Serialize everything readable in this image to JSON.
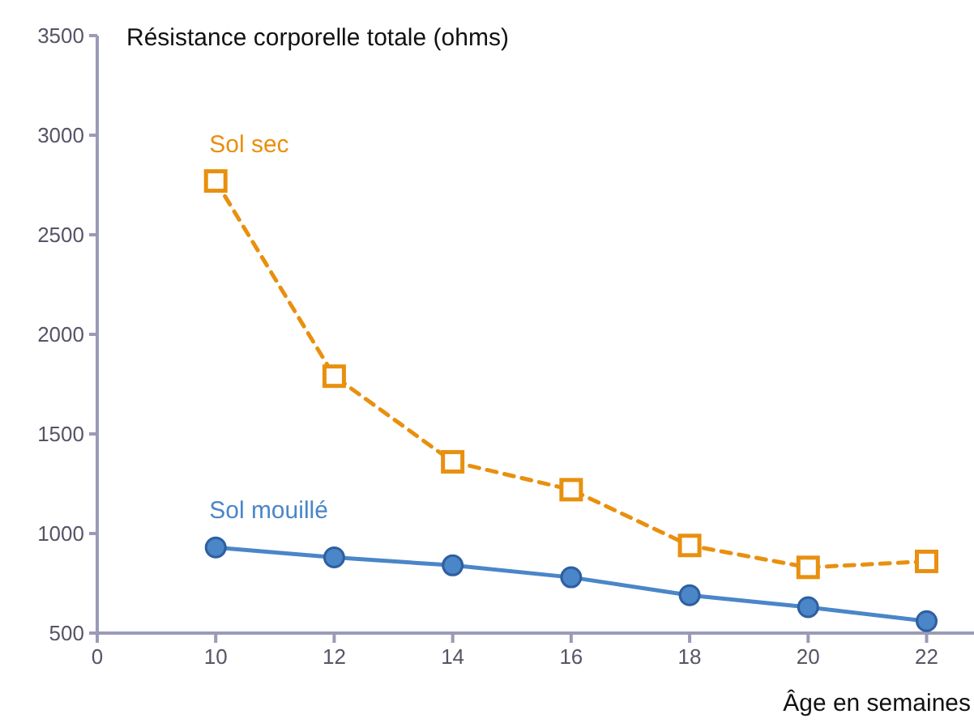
{
  "chart_data": {
    "type": "line",
    "ylabel": "Résistance corporelle totale (ohms)",
    "xlabel": "Âge en semaines",
    "categories": [
      "0",
      "10",
      "12",
      "14",
      "16",
      "18",
      "20",
      "22"
    ],
    "series": [
      {
        "name": "Sol sec",
        "color": "#e8900f",
        "values": [
          null,
          2770,
          1790,
          1360,
          1220,
          940,
          830,
          860
        ],
        "line_style": "dashed",
        "marker": "square"
      },
      {
        "name": "Sol mouillé",
        "color": "#4a86c8",
        "values": [
          null,
          930,
          880,
          840,
          780,
          690,
          630,
          560
        ],
        "line_style": "solid",
        "marker": "circle"
      }
    ],
    "ylim": [
      500,
      3500
    ],
    "yticks": [
      500,
      1000,
      1500,
      2000,
      2500,
      3000,
      3500
    ],
    "grid": false,
    "legend": false
  }
}
